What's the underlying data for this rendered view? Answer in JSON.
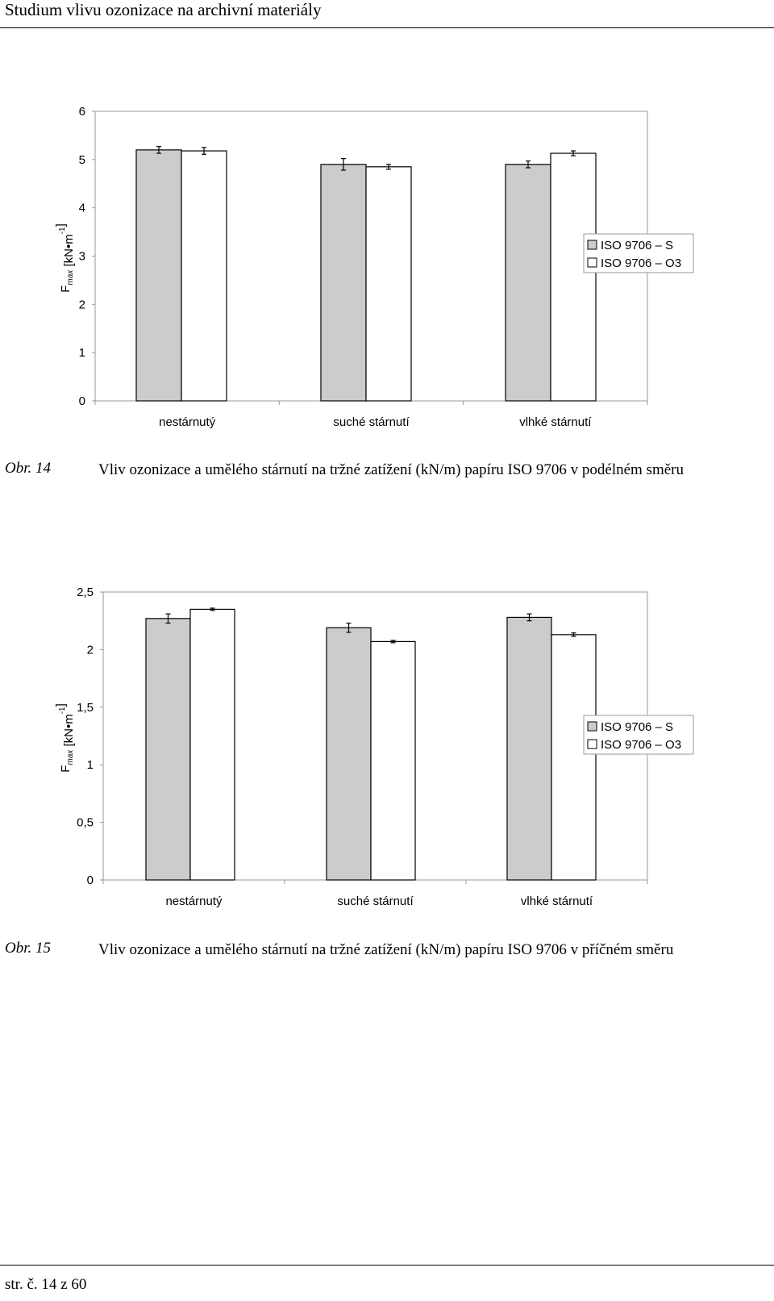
{
  "header": {
    "title": "Studium vlivu ozonizace na archivní materiály"
  },
  "figures": [
    {
      "label": "Obr. 14",
      "caption": "Vliv ozonizace a umělého stárnutí na tržné zatížení (kN/m) papíru ISO 9706 v podélném směru"
    },
    {
      "label": "Obr. 15",
      "caption": "Vliv ozonizace a umělého stárnutí na tržné zatížení (kN/m) papíru ISO 9706 v příčném směru"
    }
  ],
  "footer": {
    "page": "str. č. 14 z 60"
  },
  "chart_data": [
    {
      "type": "bar",
      "categories": [
        "nestárnutý",
        "suché stárnutí",
        "vlhké stárnutí"
      ],
      "ylabel_main": "F",
      "ylabel_sub": "max",
      "ylabel_unit_pre": " [kN•m",
      "ylabel_unit_sup": "-1",
      "ylabel_unit_post": "]",
      "ylim": [
        0,
        6
      ],
      "yticks": [
        0,
        1,
        2,
        3,
        4,
        5,
        6
      ],
      "ytick_labels": [
        "0",
        "1",
        "2",
        "3",
        "4",
        "5",
        "6"
      ],
      "legend_position": "right",
      "series": [
        {
          "name": "ISO 9706 – S",
          "color": "#cccccc",
          "values": [
            5.2,
            4.9,
            4.9
          ],
          "errors": [
            0.07,
            0.12,
            0.07
          ]
        },
        {
          "name": "ISO 9706 – O3",
          "color": "#ffffff",
          "values": [
            5.18,
            4.85,
            5.13
          ],
          "errors": [
            0.07,
            0.05,
            0.05
          ]
        }
      ]
    },
    {
      "type": "bar",
      "categories": [
        "nestárnutý",
        "suché stárnutí",
        "vlhké stárnutí"
      ],
      "ylabel_main": "F",
      "ylabel_sub": "max",
      "ylabel_unit_pre": " [kN•m",
      "ylabel_unit_sup": "-1",
      "ylabel_unit_post": "]",
      "ylim": [
        0,
        2.5
      ],
      "yticks": [
        0,
        0.5,
        1,
        1.5,
        2,
        2.5
      ],
      "ytick_labels": [
        "0",
        "0,5",
        "1",
        "1,5",
        "2",
        "2,5"
      ],
      "legend_position": "right",
      "series": [
        {
          "name": "ISO 9706 – S",
          "color": "#cccccc",
          "values": [
            2.27,
            2.19,
            2.28
          ],
          "errors": [
            0.04,
            0.04,
            0.03
          ]
        },
        {
          "name": "ISO 9706 – O3",
          "color": "#ffffff",
          "values": [
            2.35,
            2.07,
            2.13
          ],
          "errors": [
            0.01,
            0.01,
            0.015
          ]
        }
      ]
    }
  ]
}
